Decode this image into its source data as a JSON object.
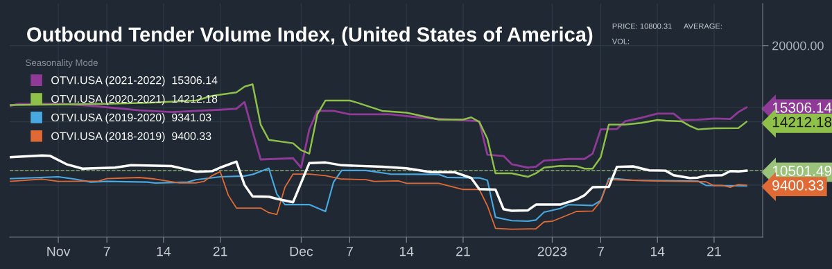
{
  "chart_data": {
    "type": "line",
    "title": "Outbound Tender Volume Index, (United States of America)",
    "legend_title": "Seasonality Mode",
    "annotations": [
      "PRICE: 10800.31",
      "AVERAGE:",
      "VOL:"
    ],
    "xlim": [
      "2022-10-26",
      "2023-01-27"
    ],
    "xticks": [
      {
        "value": "2022-11-01",
        "label": "Nov"
      },
      {
        "value": "2022-11-07",
        "label": "7"
      },
      {
        "value": "2022-11-14",
        "label": "14"
      },
      {
        "value": "2022-11-21",
        "label": "21"
      },
      {
        "value": "2022-12-01",
        "label": "Dec"
      },
      {
        "value": "2022-12-07",
        "label": "7"
      },
      {
        "value": "2022-12-14",
        "label": "14"
      },
      {
        "value": "2022-12-21",
        "label": "21"
      },
      {
        "value": "2023-01-01",
        "label": "2023"
      },
      {
        "value": "2023-01-07",
        "label": "7"
      },
      {
        "value": "2023-01-14",
        "label": "14"
      },
      {
        "value": "2023-01-21",
        "label": "21"
      }
    ],
    "ylim": [
      5450,
      23200
    ],
    "yticks": [
      {
        "value": 20000,
        "label": "20000.00"
      },
      {
        "value": 15306.14,
        "label": "15306.14"
      },
      {
        "value": 14212.18,
        "label": "14212.18"
      },
      {
        "value": 10501.49,
        "label": "10501.49"
      },
      {
        "value": 9400.33,
        "label": "9400.33"
      }
    ],
    "grid": true,
    "legend": "top left",
    "marker": "none",
    "line_style": "solid",
    "ref_lines": [
      {
        "axis": "y",
        "value": 10501.49,
        "color": "#9bc27a",
        "line_style": "dashed"
      }
    ],
    "series": [
      {
        "name": "OTVI.USA (2021-2022)  15306.14",
        "color": "#8e3a96",
        "x": [
          "2022-10-26",
          "2022-10-27",
          "2022-11-01",
          "2022-11-05",
          "2022-11-11",
          "2022-11-15",
          "2022-11-21",
          "2022-11-23",
          "2022-11-24",
          "2022-11-25",
          "2022-11-26",
          "2022-11-30",
          "2022-12-01",
          "2022-12-02",
          "2022-12-03",
          "2022-12-05",
          "2022-12-07",
          "2022-12-12",
          "2022-12-16",
          "2022-12-23",
          "2022-12-24",
          "2022-12-26",
          "2022-12-27",
          "2022-12-29",
          "2022-12-30",
          "2022-12-31",
          "2023-01-03",
          "2023-01-05",
          "2023-01-06",
          "2023-01-07",
          "2023-01-09",
          "2023-01-10",
          "2023-01-12",
          "2023-01-14",
          "2023-01-16",
          "2023-01-17",
          "2023-01-19",
          "2023-01-21",
          "2023-01-23",
          "2023-01-24",
          "2023-01-25"
        ],
        "values": [
          15390,
          15570,
          15580,
          15430,
          15080,
          14950,
          15130,
          15200,
          15710,
          13460,
          11350,
          11440,
          10730,
          13630,
          15040,
          15040,
          14780,
          14780,
          14510,
          14250,
          11710,
          11610,
          10990,
          10730,
          10800,
          11260,
          11390,
          11390,
          11790,
          13630,
          13660,
          14250,
          14510,
          14830,
          14830,
          14340,
          14370,
          14460,
          14420,
          14950,
          15306.14
        ]
      },
      {
        "name": "OTVI.USA (2020-2021)  14212.18",
        "color": "#8fc04a",
        "x": [
          "2022-10-26",
          "2022-11-06",
          "2022-11-12",
          "2022-11-18",
          "2022-11-20",
          "2022-11-23",
          "2022-11-24",
          "2022-11-25",
          "2022-11-26",
          "2022-11-27",
          "2022-11-30",
          "2022-12-01",
          "2022-12-02",
          "2022-12-03",
          "2022-12-04",
          "2022-12-07",
          "2022-12-08",
          "2022-12-11",
          "2022-12-14",
          "2022-12-18",
          "2022-12-21",
          "2022-12-22",
          "2022-12-23",
          "2022-12-24",
          "2022-12-25",
          "2022-12-27",
          "2022-12-29",
          "2022-12-30",
          "2022-12-31",
          "2023-01-02",
          "2023-01-04",
          "2023-01-05",
          "2023-01-06",
          "2023-01-07",
          "2023-01-08",
          "2023-01-10",
          "2023-01-12",
          "2023-01-14",
          "2023-01-15",
          "2023-01-17",
          "2023-01-18",
          "2023-01-19",
          "2023-01-21",
          "2023-01-24",
          "2023-01-25"
        ],
        "values": [
          15480,
          15560,
          15650,
          15830,
          16180,
          16450,
          16880,
          17060,
          13990,
          12840,
          12580,
          12050,
          11790,
          14780,
          15830,
          15830,
          15650,
          15040,
          14900,
          14380,
          14380,
          14550,
          14200,
          12930,
          10300,
          10300,
          10030,
          10300,
          10730,
          10860,
          10840,
          10650,
          10650,
          11520,
          13990,
          13990,
          14130,
          14350,
          14300,
          14250,
          13900,
          13630,
          13720,
          13730,
          14212.18
        ]
      },
      {
        "name": "OTVI.USA (2019-2020)  9341.03",
        "color": "#4aa8e0",
        "x": [
          "2022-10-26",
          "2022-11-01",
          "2022-11-03",
          "2022-11-05",
          "2022-11-07",
          "2022-11-12",
          "2022-11-13",
          "2022-11-17",
          "2022-11-18",
          "2022-11-21",
          "2022-11-24",
          "2022-11-25",
          "2022-11-27",
          "2022-11-28",
          "2022-11-29",
          "2022-12-02",
          "2022-12-04",
          "2022-12-05",
          "2022-12-06",
          "2022-12-09",
          "2022-12-12",
          "2022-12-18",
          "2022-12-19",
          "2022-12-23",
          "2022-12-24",
          "2022-12-25",
          "2022-12-27",
          "2022-12-29",
          "2022-12-30",
          "2022-12-31",
          "2023-01-02",
          "2023-01-03",
          "2023-01-06",
          "2023-01-07",
          "2023-01-08",
          "2023-01-09",
          "2023-01-11",
          "2023-01-15",
          "2023-01-19",
          "2023-01-20",
          "2023-01-22",
          "2023-01-25"
        ],
        "values": [
          9890,
          10030,
          9860,
          9630,
          9680,
          9630,
          9560,
          9630,
          9810,
          10030,
          10090,
          10210,
          10680,
          8710,
          7920,
          7920,
          7400,
          9630,
          10510,
          10510,
          10240,
          10210,
          9990,
          9950,
          9770,
          6960,
          6700,
          6660,
          6750,
          7350,
          7620,
          7910,
          7850,
          8230,
          9910,
          9890,
          9770,
          9740,
          9700,
          9380,
          9360,
          9341.03
        ]
      },
      {
        "name": "OTVI.USA (2018-2019)  9400.33",
        "color": "#e06a35",
        "x": [
          "2022-10-26",
          "2022-10-30",
          "2022-11-01",
          "2022-11-06",
          "2022-11-07",
          "2022-11-11",
          "2022-11-13",
          "2022-11-16",
          "2022-11-18",
          "2022-11-19",
          "2022-11-20",
          "2022-11-21",
          "2022-11-22",
          "2022-11-23",
          "2022-11-26",
          "2022-11-27",
          "2022-11-28",
          "2022-11-29",
          "2022-11-30",
          "2022-12-02",
          "2022-12-04",
          "2022-12-06",
          "2022-12-09",
          "2022-12-10",
          "2022-12-13",
          "2022-12-14",
          "2022-12-18",
          "2022-12-21",
          "2022-12-23",
          "2022-12-24",
          "2022-12-25",
          "2022-12-27",
          "2022-12-30",
          "2022-12-31",
          "2023-01-01",
          "2023-01-04",
          "2023-01-06",
          "2023-01-07",
          "2023-01-08",
          "2023-01-11",
          "2023-01-15",
          "2023-01-20",
          "2023-01-21",
          "2023-01-22",
          "2023-01-23",
          "2023-01-24",
          "2023-01-25"
        ],
        "values": [
          9680,
          9860,
          9680,
          9710,
          9890,
          9980,
          9860,
          9560,
          9560,
          9680,
          10120,
          10420,
          8630,
          7660,
          7660,
          7310,
          7170,
          9240,
          10240,
          10240,
          10120,
          9860,
          9820,
          9680,
          9720,
          9540,
          9540,
          9070,
          9070,
          7830,
          6120,
          6050,
          6080,
          6610,
          6650,
          7400,
          7430,
          8190,
          9810,
          9770,
          9700,
          9650,
          9360,
          9380,
          9240,
          9450,
          9400.33
        ]
      },
      {
        "color": "#ffffff",
        "x": [
          "2022-10-26",
          "2022-10-30",
          "2022-10-31",
          "2022-11-02",
          "2022-11-04",
          "2022-11-08",
          "2022-11-10",
          "2022-11-13",
          "2022-11-15",
          "2022-11-18",
          "2022-11-20",
          "2022-11-21",
          "2022-11-23",
          "2022-11-24",
          "2022-11-25",
          "2022-11-27",
          "2022-11-28",
          "2022-11-30",
          "2022-12-02",
          "2022-12-04",
          "2022-12-06",
          "2022-12-11",
          "2022-12-14",
          "2022-12-17",
          "2022-12-20",
          "2022-12-22",
          "2022-12-23",
          "2022-12-25",
          "2022-12-26",
          "2022-12-27",
          "2022-12-29",
          "2022-12-30",
          "2023-01-02",
          "2023-01-04",
          "2023-01-05",
          "2023-01-06",
          "2023-01-08",
          "2023-01-09",
          "2023-01-11",
          "2023-01-13",
          "2023-01-15",
          "2023-01-16",
          "2023-01-18",
          "2023-01-19",
          "2023-01-20",
          "2023-01-22",
          "2023-01-23",
          "2023-01-24",
          "2023-01-25"
        ],
        "values": [
          11520,
          11650,
          11620,
          10990,
          10650,
          10730,
          10910,
          10880,
          10850,
          10420,
          10460,
          10730,
          11180,
          9420,
          8540,
          8520,
          8360,
          8100,
          11070,
          11120,
          10910,
          10800,
          10680,
          10390,
          10370,
          9940,
          9100,
          9060,
          7570,
          7450,
          7480,
          7920,
          7920,
          8310,
          8630,
          9240,
          9270,
          10790,
          10820,
          10520,
          10500,
          10150,
          9940,
          9970,
          10120,
          10150,
          10470,
          10440,
          10501.49
        ]
      }
    ]
  }
}
